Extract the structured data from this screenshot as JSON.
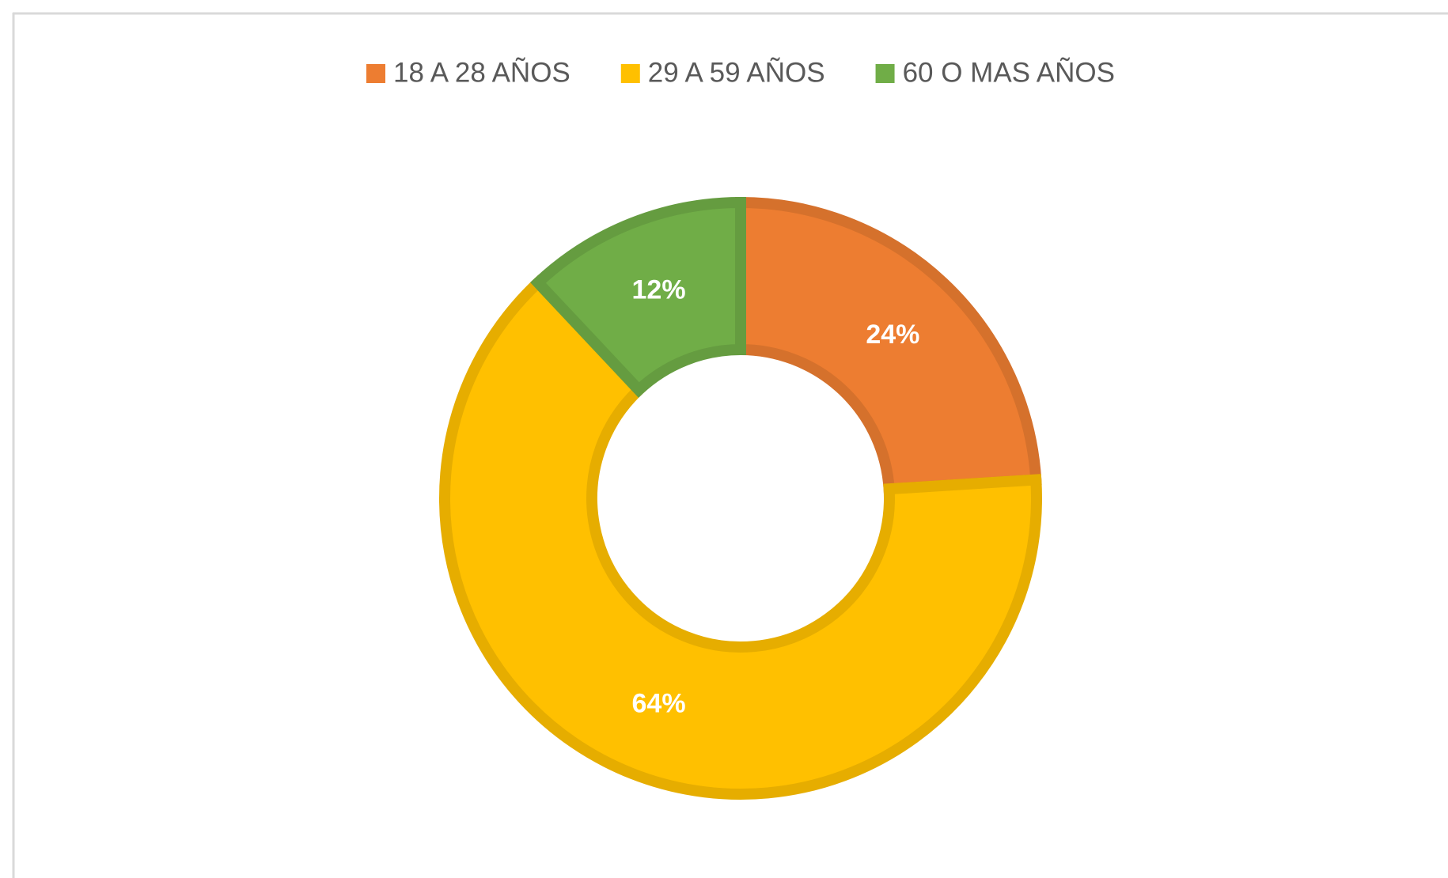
{
  "chart_data": {
    "type": "donut",
    "categories": [
      "18 A 28 AÑOS",
      "29 A 59 AÑOS",
      "60 O MAS AÑOS"
    ],
    "values": [
      24,
      64,
      12
    ],
    "value_labels": [
      "24%",
      "64%",
      "12%"
    ],
    "colors": [
      "#ED7D31",
      "#FFC000",
      "#70AD47"
    ],
    "legend": "top"
  }
}
